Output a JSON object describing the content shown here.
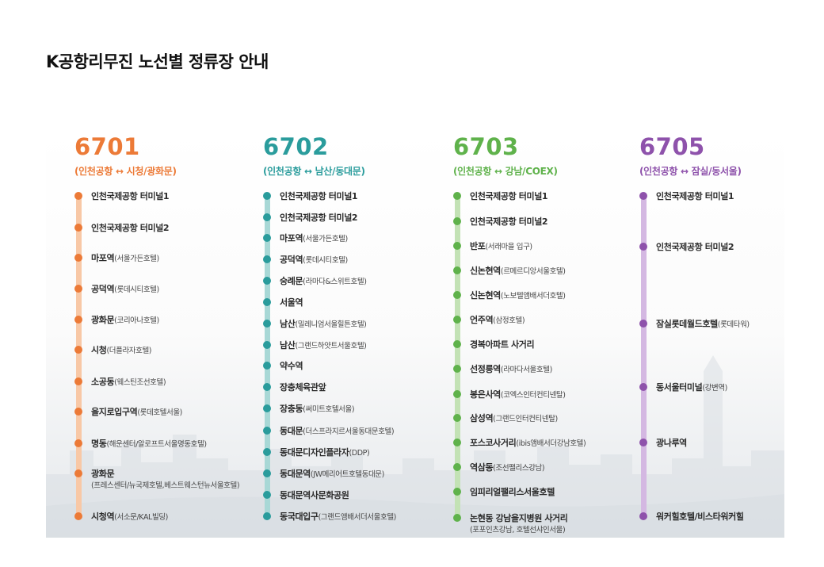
{
  "title": "K공항리무진 노선별 정류장 안내",
  "routes": [
    {
      "number": "6701",
      "desc": "(인천공항 ↔ 시청/광화문)",
      "color": "#ec7a37",
      "line_color": "#f8c8a6",
      "stops": [
        {
          "name": "인천국제공항 터미널1",
          "sub": "",
          "note": ""
        },
        {
          "name": "인천국제공항 터미널2",
          "sub": "",
          "note": ""
        },
        {
          "name": "마포역",
          "sub": "(서울가든호텔)",
          "note": ""
        },
        {
          "name": "공덕역",
          "sub": "(롯데시티호텔)",
          "note": ""
        },
        {
          "name": "광화문",
          "sub": "(코리아나호텔)",
          "note": ""
        },
        {
          "name": "시청",
          "sub": "(더플라자호텔)",
          "note": ""
        },
        {
          "name": "소공동",
          "sub": "(웨스틴조선호텔)",
          "note": ""
        },
        {
          "name": "을지로입구역",
          "sub": "(롯데호텔서울)",
          "note": ""
        },
        {
          "name": "명동",
          "sub": "(해운센터/알로프트서울명동호텔)",
          "note": ""
        },
        {
          "name": "광화문",
          "sub": "",
          "note": "(프레스센터/뉴국제호텔,베스트웨스턴뉴서울호텔)"
        },
        {
          "name": "시청역",
          "sub": "(서소문/KAL빌딩)",
          "note": ""
        }
      ]
    },
    {
      "number": "6702",
      "desc": "(인천공항 ↔ 남산/동대문)",
      "color": "#2a9c9c",
      "line_color": "#a8d8d6",
      "stops": [
        {
          "name": "인천국제공항 터미널1",
          "sub": "",
          "note": ""
        },
        {
          "name": "인천국제공항 터미널2",
          "sub": "",
          "note": ""
        },
        {
          "name": "마포역",
          "sub": "(서울가든호텔)",
          "note": ""
        },
        {
          "name": "공덕역",
          "sub": "(롯데시티호텔)",
          "note": ""
        },
        {
          "name": "숭례문",
          "sub": "(라마다&스위트호텔)",
          "note": ""
        },
        {
          "name": "서울역",
          "sub": "",
          "note": ""
        },
        {
          "name": "남산",
          "sub": "(밀레니엄서울힐튼호텔)",
          "note": ""
        },
        {
          "name": "남산",
          "sub": "(그랜드하얏트서울호텔)",
          "note": ""
        },
        {
          "name": "약수역",
          "sub": "",
          "note": ""
        },
        {
          "name": "장충체육관앞",
          "sub": "",
          "note": ""
        },
        {
          "name": "장충동",
          "sub": "(써미트호텔서울)",
          "note": ""
        },
        {
          "name": "동대문",
          "sub": "(더스프라지르서울동대문호텔)",
          "note": ""
        },
        {
          "name": "동대문디자인플라자",
          "sub": "(DDP)",
          "note": ""
        },
        {
          "name": "동대문역",
          "sub": "(JW메리어트호텔동대문)",
          "note": ""
        },
        {
          "name": "동대문역사문화공원",
          "sub": "",
          "note": ""
        },
        {
          "name": "동국대입구",
          "sub": "(그랜드앰배서더서울호텔)",
          "note": ""
        }
      ]
    },
    {
      "number": "6703",
      "desc": "(인천공항 ↔ 강남/COEX)",
      "color": "#5fb24b",
      "line_color": "#c3e2b5",
      "stops": [
        {
          "name": "인천국제공항 터미널1",
          "sub": "",
          "note": ""
        },
        {
          "name": "인천국제공항 터미널2",
          "sub": "",
          "note": ""
        },
        {
          "name": "반포",
          "sub": "(서래마을 입구)",
          "note": ""
        },
        {
          "name": "신논현역",
          "sub": "(르메르디앙서울호텔)",
          "note": ""
        },
        {
          "name": "신논현역",
          "sub": "(노보텔앰배서더호텔)",
          "note": ""
        },
        {
          "name": "언주역",
          "sub": "(삼정호텔)",
          "note": ""
        },
        {
          "name": "경복아파트 사거리",
          "sub": "",
          "note": ""
        },
        {
          "name": "선정릉역",
          "sub": "(라마다서울호텔)",
          "note": ""
        },
        {
          "name": "봉은사역",
          "sub": "(코엑스인터컨티넨탈)",
          "note": ""
        },
        {
          "name": "삼성역",
          "sub": "(그랜드인터컨티넨탈)",
          "note": ""
        },
        {
          "name": "포스코사거리",
          "sub": "(ibis앰배서더강남호텔)",
          "note": ""
        },
        {
          "name": "역삼동",
          "sub": "(조선팰리스강남)",
          "note": ""
        },
        {
          "name": "임피리얼팰리스서울호텔",
          "sub": "",
          "note": ""
        },
        {
          "name": "논현동 강남을지병원 사거리",
          "sub": "",
          "note": "(포포인츠강남, 호텔선샤인서울)"
        }
      ]
    },
    {
      "number": "6705",
      "desc": "(인천공항 ↔ 잠실/동서울)",
      "color": "#8e52ab",
      "line_color": "#d4b8e2",
      "stops": [
        {
          "name": "인천국제공항 터미널1",
          "sub": "",
          "note": ""
        },
        {
          "name": "인천국제공항 터미널2",
          "sub": "",
          "note": ""
        },
        {
          "name": "잠실롯데월드호텔",
          "sub": "(롯데타워)",
          "note": ""
        },
        {
          "name": "동서울터미널",
          "sub": "(강변역)",
          "note": ""
        },
        {
          "name": "광나루역",
          "sub": "",
          "note": ""
        },
        {
          "name": "워커힐호텔/비스타워커힐",
          "sub": "",
          "note": ""
        }
      ]
    }
  ]
}
